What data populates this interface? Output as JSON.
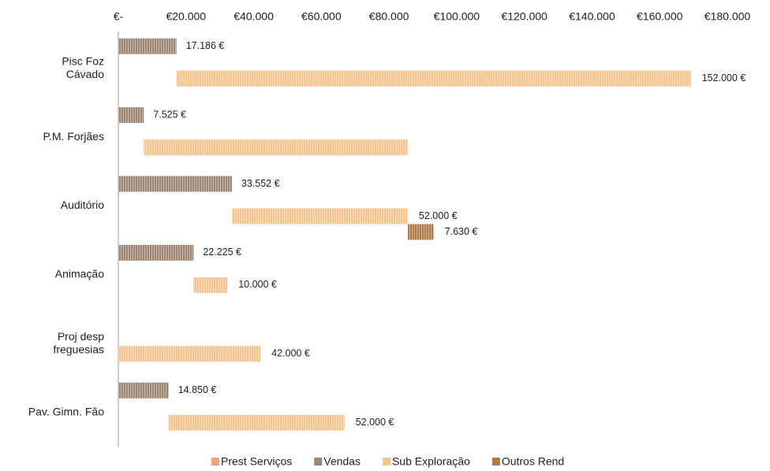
{
  "chart_data": {
    "type": "bar",
    "orientation": "horizontal",
    "stacked": true,
    "categories": [
      "Pisc Foz Cávado",
      "P.M. Forjães",
      "Auditório",
      "Animação",
      "Proj desp freguesias",
      "Pav. Gimn. Fão"
    ],
    "series": [
      {
        "name": "Prest Serviços",
        "color": "#eea57a",
        "values": [
          null,
          null,
          null,
          null,
          null,
          null
        ],
        "value_labels": [
          null,
          null,
          null,
          null,
          null,
          null
        ]
      },
      {
        "name": "Vendas",
        "color": "#9c8572",
        "values": [
          17186,
          7525,
          33552,
          22225,
          null,
          14850
        ],
        "value_labels": [
          "17.186 €",
          "7.525 €",
          "33.552 €",
          "22.225 €",
          null,
          "14.850 €"
        ]
      },
      {
        "name": "Sub Exploração",
        "color": "#f6c48e",
        "values": [
          152000,
          78000,
          52000,
          10000,
          42000,
          52000
        ],
        "value_labels": [
          "152.000 €",
          null,
          "52.000 €",
          "10.000 €",
          "42.000 €",
          "52.000 €"
        ]
      },
      {
        "name": "Outros Rend",
        "color": "#b07a48",
        "values": [
          null,
          null,
          7630,
          null,
          null,
          null
        ],
        "value_labels": [
          null,
          null,
          "7.630 €",
          null,
          null,
          null
        ]
      }
    ],
    "xlim": [
      0,
      180000
    ],
    "xticks": [
      {
        "value": 0,
        "label": "€-"
      },
      {
        "value": 20000,
        "label": "€20.000"
      },
      {
        "value": 40000,
        "label": "€40.000"
      },
      {
        "value": 60000,
        "label": "€60.000"
      },
      {
        "value": 80000,
        "label": "€80.000"
      },
      {
        "value": 100000,
        "label": "€100.000"
      },
      {
        "value": 120000,
        "label": "€120.000"
      },
      {
        "value": 140000,
        "label": "€140.000"
      },
      {
        "value": 160000,
        "label": "€160.000"
      },
      {
        "value": 180000,
        "label": "€180.000"
      }
    ],
    "legend": "bottom"
  }
}
